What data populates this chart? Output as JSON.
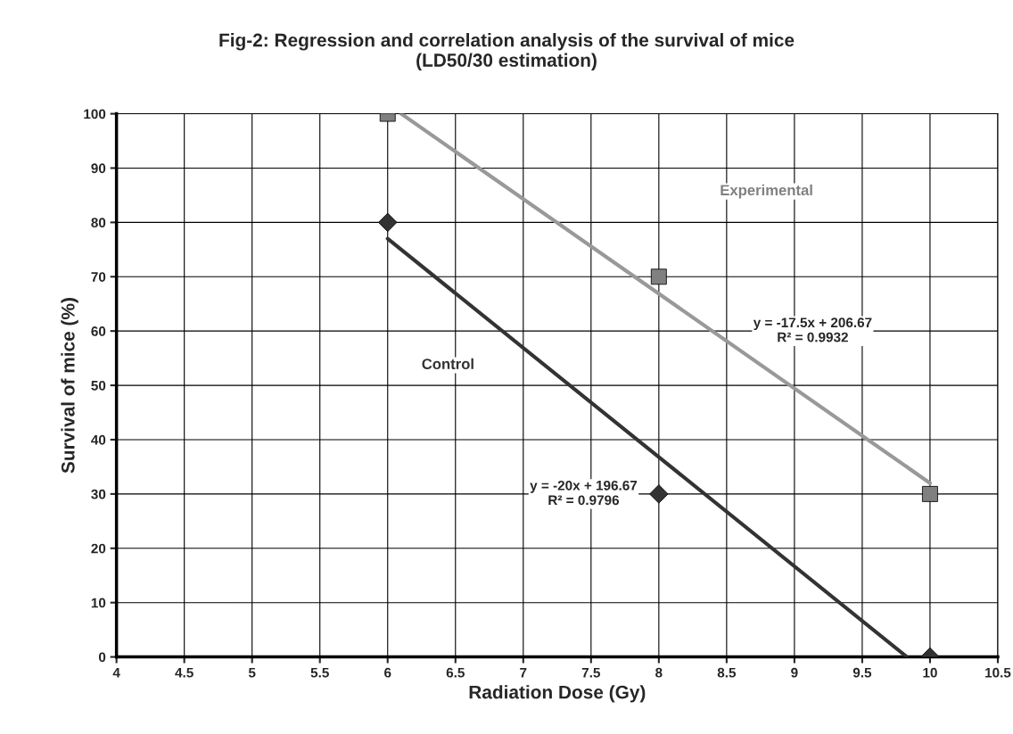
{
  "chart_data": {
    "type": "scatter",
    "title": "Fig-2: Regression and correlation analysis of the survival of mice\n(LD50/30 estimation)",
    "xlabel": "Radiation Dose (Gy)",
    "ylabel": "Survival of mice (%)",
    "series": [
      {
        "name": "Experimental",
        "marker": "square",
        "color": "#808080",
        "x": [
          6,
          8,
          10
        ],
        "values": [
          100,
          70,
          30
        ]
      },
      {
        "name": "Control",
        "marker": "diamond",
        "color": "#333333",
        "x": [
          6,
          8,
          10
        ],
        "values": [
          80,
          30,
          0
        ]
      },
      {
        "type": "line",
        "marker": "none",
        "line_style": "solid",
        "color": "#999999",
        "x": [
          6.1,
          10
        ],
        "values": [
          100,
          32
        ]
      },
      {
        "type": "line",
        "marker": "none",
        "line_style": "solid",
        "color": "#333333",
        "x": [
          6,
          9.83
        ],
        "values": [
          77,
          0
        ]
      }
    ],
    "annotations": [
      "y = -17.5x + 206.67\nR² = 0.9932",
      "y = -20x + 196.67\nR² = 0.9796"
    ],
    "xlim": [
      4,
      10.5
    ],
    "xticks": [
      4,
      4.5,
      5,
      5.5,
      6,
      6.5,
      7,
      7.5,
      8,
      8.5,
      9,
      9.5,
      10,
      10.5
    ],
    "ylim": [
      0,
      100
    ],
    "yticks": [
      0,
      10,
      20,
      30,
      40,
      50,
      60,
      70,
      80,
      90,
      100
    ],
    "grid": true,
    "legend": false
  }
}
